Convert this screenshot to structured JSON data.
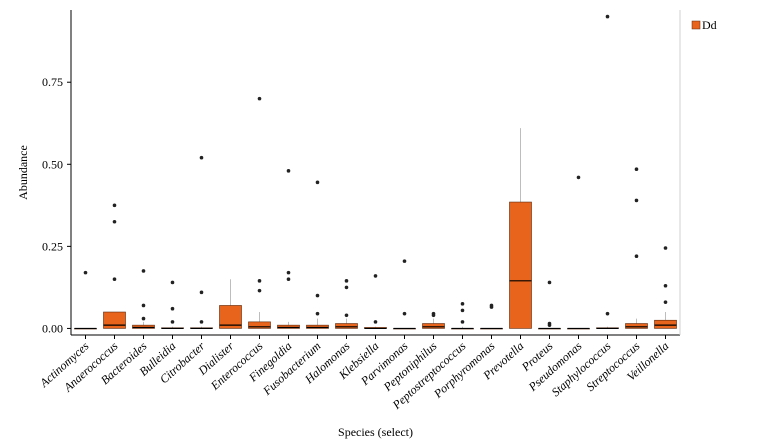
{
  "chart_data": {
    "type": "box",
    "title": "",
    "xlabel": "Species (select)",
    "ylabel": "Abundance",
    "ylim": [
      -0.02,
      0.97
    ],
    "yticks": [
      0.0,
      0.25,
      0.5,
      0.75
    ],
    "ytick_labels": [
      "0.00",
      "0.25",
      "0.50",
      "0.75"
    ],
    "grid": false,
    "legend": {
      "position": "top-right",
      "entries": [
        {
          "name": "Dd",
          "color": "#e8631b"
        }
      ]
    },
    "colors": {
      "box_fill": "#e8631b",
      "box_stroke": "#5a2a10",
      "median": "#000000",
      "whisker": "#bdbdbd",
      "outlier": "#222222"
    },
    "categories": [
      "Actinomyces",
      "Anaerococcus",
      "Bacteroides",
      "Bulleidia",
      "Citrobacter",
      "Dialister",
      "Enterococcus",
      "Finegoldia",
      "Fusobacterium",
      "Halomonas",
      "Klebsiella",
      "Parvimonas",
      "Peptoniphilus",
      "Peptostreptococcus",
      "Porphyromonas",
      "Prevotella",
      "Proteus",
      "Pseudomonas",
      "Staphylococcus",
      "Streptococcus",
      "Veillonella"
    ],
    "series": [
      {
        "name": "Dd",
        "boxes": [
          {
            "q1": 0.0,
            "median": 0.0,
            "q3": 0.0,
            "whisker_low": 0.0,
            "whisker_high": 0.0,
            "outliers": [
              0.17
            ]
          },
          {
            "q1": 0.0,
            "median": 0.01,
            "q3": 0.05,
            "whisker_low": 0.0,
            "whisker_high": 0.05,
            "outliers": [
              0.15,
              0.325,
              0.375
            ]
          },
          {
            "q1": 0.0,
            "median": 0.003,
            "q3": 0.01,
            "whisker_low": 0.0,
            "whisker_high": 0.02,
            "outliers": [
              0.03,
              0.07,
              0.175
            ]
          },
          {
            "q1": 0.0,
            "median": 0.0,
            "q3": 0.002,
            "whisker_low": 0.0,
            "whisker_high": 0.005,
            "outliers": [
              0.02,
              0.06,
              0.14
            ]
          },
          {
            "q1": 0.0,
            "median": 0.0,
            "q3": 0.002,
            "whisker_low": 0.0,
            "whisker_high": 0.005,
            "outliers": [
              0.02,
              0.11,
              0.52
            ]
          },
          {
            "q1": 0.0,
            "median": 0.01,
            "q3": 0.07,
            "whisker_low": 0.0,
            "whisker_high": 0.15,
            "outliers": []
          },
          {
            "q1": 0.0,
            "median": 0.005,
            "q3": 0.02,
            "whisker_low": 0.0,
            "whisker_high": 0.05,
            "outliers": [
              0.115,
              0.145,
              0.7
            ]
          },
          {
            "q1": 0.0,
            "median": 0.003,
            "q3": 0.01,
            "whisker_low": 0.0,
            "whisker_high": 0.02,
            "outliers": [
              0.15,
              0.17,
              0.48
            ]
          },
          {
            "q1": 0.0,
            "median": 0.003,
            "q3": 0.01,
            "whisker_low": 0.0,
            "whisker_high": 0.03,
            "outliers": [
              0.045,
              0.1,
              0.445
            ]
          },
          {
            "q1": 0.0,
            "median": 0.005,
            "q3": 0.015,
            "whisker_low": 0.0,
            "whisker_high": 0.03,
            "outliers": [
              0.04,
              0.125,
              0.145
            ]
          },
          {
            "q1": 0.0,
            "median": 0.0,
            "q3": 0.003,
            "whisker_low": 0.0,
            "whisker_high": 0.005,
            "outliers": [
              0.02,
              0.16
            ]
          },
          {
            "q1": 0.0,
            "median": 0.0,
            "q3": 0.0,
            "whisker_low": 0.0,
            "whisker_high": 0.0,
            "outliers": [
              0.045,
              0.205
            ]
          },
          {
            "q1": 0.0,
            "median": 0.005,
            "q3": 0.015,
            "whisker_low": 0.0,
            "whisker_high": 0.03,
            "outliers": [
              0.04,
              0.045
            ]
          },
          {
            "q1": 0.0,
            "median": 0.0,
            "q3": 0.0,
            "whisker_low": 0.0,
            "whisker_high": 0.005,
            "outliers": [
              0.02,
              0.055,
              0.075
            ]
          },
          {
            "q1": 0.0,
            "median": 0.0,
            "q3": 0.0,
            "whisker_low": 0.0,
            "whisker_high": 0.0,
            "outliers": [
              0.065,
              0.07
            ]
          },
          {
            "q1": 0.0,
            "median": 0.145,
            "q3": 0.385,
            "whisker_low": 0.0,
            "whisker_high": 0.61,
            "outliers": []
          },
          {
            "q1": 0.0,
            "median": 0.0,
            "q3": 0.0,
            "whisker_low": 0.0,
            "whisker_high": 0.0,
            "outliers": [
              0.01,
              0.015,
              0.14
            ]
          },
          {
            "q1": 0.0,
            "median": 0.0,
            "q3": 0.0,
            "whisker_low": 0.0,
            "whisker_high": 0.0,
            "outliers": [
              0.46
            ]
          },
          {
            "q1": 0.0,
            "median": 0.0,
            "q3": 0.002,
            "whisker_low": 0.0,
            "whisker_high": 0.005,
            "outliers": [
              0.045,
              0.95
            ]
          },
          {
            "q1": 0.0,
            "median": 0.005,
            "q3": 0.015,
            "whisker_low": 0.0,
            "whisker_high": 0.03,
            "outliers": [
              0.22,
              0.39,
              0.485
            ]
          },
          {
            "q1": 0.0,
            "median": 0.01,
            "q3": 0.025,
            "whisker_low": 0.0,
            "whisker_high": 0.05,
            "outliers": [
              0.08,
              0.13,
              0.245
            ]
          }
        ]
      }
    ]
  }
}
